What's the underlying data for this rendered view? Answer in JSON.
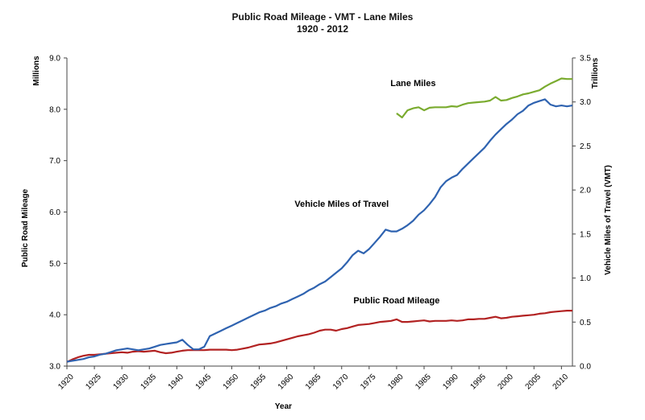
{
  "chart_data": {
    "type": "line",
    "title": "Public Road Mileage - VMT - Lane Miles",
    "subtitle": "1920 - 2012",
    "xlabel": "Year",
    "ylabel_left": "Public Road Mileage",
    "ylabel_right": "Vehicle Miles of Travel (VMT)",
    "unit_left": "Millions",
    "unit_right": "Trillions",
    "xlim": [
      1920,
      2012
    ],
    "ylim_left": [
      3.0,
      9.0
    ],
    "ylim_right": [
      0.0,
      3.5
    ],
    "x_ticks": [
      "1920",
      "1925",
      "1930",
      "1935",
      "1940",
      "1945",
      "1950",
      "1955",
      "1960",
      "1965",
      "1970",
      "1975",
      "1980",
      "1985",
      "1990",
      "1995",
      "2000",
      "2005",
      "2010"
    ],
    "y_ticks_left": [
      "3.0",
      "4.0",
      "5.0",
      "6.0",
      "7.0",
      "8.0",
      "9.0"
    ],
    "y_ticks_right": [
      "0.0",
      "0.5",
      "1.0",
      "1.5",
      "2.0",
      "2.5",
      "3.0",
      "3.5"
    ],
    "grid": false,
    "legend": "none (series labeled inline)",
    "series": [
      {
        "name": "Public Road Mileage",
        "axis": "left",
        "color": "#b22222",
        "label_at": [
          1980,
          4.22
        ],
        "points": [
          [
            1920,
            3.08
          ],
          [
            1921,
            3.13
          ],
          [
            1922,
            3.17
          ],
          [
            1923,
            3.2
          ],
          [
            1924,
            3.22
          ],
          [
            1925,
            3.22
          ],
          [
            1926,
            3.23
          ],
          [
            1927,
            3.24
          ],
          [
            1928,
            3.25
          ],
          [
            1929,
            3.26
          ],
          [
            1930,
            3.27
          ],
          [
            1931,
            3.26
          ],
          [
            1932,
            3.28
          ],
          [
            1933,
            3.29
          ],
          [
            1934,
            3.28
          ],
          [
            1935,
            3.29
          ],
          [
            1936,
            3.3
          ],
          [
            1937,
            3.27
          ],
          [
            1938,
            3.25
          ],
          [
            1939,
            3.26
          ],
          [
            1940,
            3.28
          ],
          [
            1941,
            3.3
          ],
          [
            1942,
            3.31
          ],
          [
            1943,
            3.31
          ],
          [
            1944,
            3.31
          ],
          [
            1945,
            3.31
          ],
          [
            1946,
            3.32
          ],
          [
            1947,
            3.32
          ],
          [
            1948,
            3.32
          ],
          [
            1949,
            3.32
          ],
          [
            1950,
            3.31
          ],
          [
            1951,
            3.32
          ],
          [
            1952,
            3.34
          ],
          [
            1953,
            3.36
          ],
          [
            1954,
            3.39
          ],
          [
            1955,
            3.42
          ],
          [
            1956,
            3.43
          ],
          [
            1957,
            3.44
          ],
          [
            1958,
            3.46
          ],
          [
            1959,
            3.49
          ],
          [
            1960,
            3.52
          ],
          [
            1961,
            3.55
          ],
          [
            1962,
            3.58
          ],
          [
            1963,
            3.6
          ],
          [
            1964,
            3.62
          ],
          [
            1965,
            3.65
          ],
          [
            1966,
            3.69
          ],
          [
            1967,
            3.71
          ],
          [
            1968,
            3.71
          ],
          [
            1969,
            3.69
          ],
          [
            1970,
            3.72
          ],
          [
            1971,
            3.74
          ],
          [
            1972,
            3.77
          ],
          [
            1973,
            3.8
          ],
          [
            1974,
            3.81
          ],
          [
            1975,
            3.82
          ],
          [
            1976,
            3.84
          ],
          [
            1977,
            3.86
          ],
          [
            1978,
            3.87
          ],
          [
            1979,
            3.88
          ],
          [
            1980,
            3.91
          ],
          [
            1981,
            3.86
          ],
          [
            1982,
            3.86
          ],
          [
            1983,
            3.87
          ],
          [
            1984,
            3.88
          ],
          [
            1985,
            3.89
          ],
          [
            1986,
            3.87
          ],
          [
            1987,
            3.88
          ],
          [
            1988,
            3.88
          ],
          [
            1989,
            3.88
          ],
          [
            1990,
            3.89
          ],
          [
            1991,
            3.88
          ],
          [
            1992,
            3.89
          ],
          [
            1993,
            3.91
          ],
          [
            1994,
            3.91
          ],
          [
            1995,
            3.92
          ],
          [
            1996,
            3.92
          ],
          [
            1997,
            3.94
          ],
          [
            1998,
            3.96
          ],
          [
            1999,
            3.93
          ],
          [
            2000,
            3.94
          ],
          [
            2001,
            3.96
          ],
          [
            2002,
            3.97
          ],
          [
            2003,
            3.98
          ],
          [
            2004,
            3.99
          ],
          [
            2005,
            4.0
          ],
          [
            2006,
            4.02
          ],
          [
            2007,
            4.03
          ],
          [
            2008,
            4.05
          ],
          [
            2009,
            4.06
          ],
          [
            2010,
            4.07
          ],
          [
            2011,
            4.08
          ],
          [
            2012,
            4.08
          ]
        ]
      },
      {
        "name": "Vehicle Miles of Travel",
        "axis": "right",
        "color": "#2f63b0",
        "label_at": [
          1970,
          1.81
        ],
        "points": [
          [
            1920,
            0.05
          ],
          [
            1921,
            0.06
          ],
          [
            1922,
            0.07
          ],
          [
            1923,
            0.08
          ],
          [
            1924,
            0.1
          ],
          [
            1925,
            0.11
          ],
          [
            1926,
            0.13
          ],
          [
            1927,
            0.14
          ],
          [
            1928,
            0.16
          ],
          [
            1929,
            0.18
          ],
          [
            1930,
            0.19
          ],
          [
            1931,
            0.2
          ],
          [
            1932,
            0.19
          ],
          [
            1933,
            0.18
          ],
          [
            1934,
            0.19
          ],
          [
            1935,
            0.2
          ],
          [
            1936,
            0.22
          ],
          [
            1937,
            0.24
          ],
          [
            1938,
            0.25
          ],
          [
            1939,
            0.26
          ],
          [
            1940,
            0.27
          ],
          [
            1941,
            0.3
          ],
          [
            1942,
            0.24
          ],
          [
            1943,
            0.19
          ],
          [
            1944,
            0.19
          ],
          [
            1945,
            0.22
          ],
          [
            1946,
            0.34
          ],
          [
            1947,
            0.37
          ],
          [
            1948,
            0.4
          ],
          [
            1949,
            0.43
          ],
          [
            1950,
            0.46
          ],
          [
            1951,
            0.49
          ],
          [
            1952,
            0.52
          ],
          [
            1953,
            0.55
          ],
          [
            1954,
            0.58
          ],
          [
            1955,
            0.61
          ],
          [
            1956,
            0.63
          ],
          [
            1957,
            0.66
          ],
          [
            1958,
            0.68
          ],
          [
            1959,
            0.71
          ],
          [
            1960,
            0.73
          ],
          [
            1961,
            0.76
          ],
          [
            1962,
            0.79
          ],
          [
            1963,
            0.82
          ],
          [
            1964,
            0.86
          ],
          [
            1965,
            0.89
          ],
          [
            1966,
            0.93
          ],
          [
            1967,
            0.96
          ],
          [
            1968,
            1.01
          ],
          [
            1969,
            1.06
          ],
          [
            1970,
            1.11
          ],
          [
            1971,
            1.18
          ],
          [
            1972,
            1.26
          ],
          [
            1973,
            1.31
          ],
          [
            1974,
            1.28
          ],
          [
            1975,
            1.33
          ],
          [
            1976,
            1.4
          ],
          [
            1977,
            1.47
          ],
          [
            1978,
            1.55
          ],
          [
            1979,
            1.53
          ],
          [
            1980,
            1.53
          ],
          [
            1981,
            1.56
          ],
          [
            1982,
            1.6
          ],
          [
            1983,
            1.65
          ],
          [
            1984,
            1.72
          ],
          [
            1985,
            1.77
          ],
          [
            1986,
            1.84
          ],
          [
            1987,
            1.92
          ],
          [
            1988,
            2.03
          ],
          [
            1989,
            2.1
          ],
          [
            1990,
            2.14
          ],
          [
            1991,
            2.17
          ],
          [
            1992,
            2.24
          ],
          [
            1993,
            2.3
          ],
          [
            1994,
            2.36
          ],
          [
            1995,
            2.42
          ],
          [
            1996,
            2.48
          ],
          [
            1997,
            2.56
          ],
          [
            1998,
            2.63
          ],
          [
            1999,
            2.69
          ],
          [
            2000,
            2.75
          ],
          [
            2001,
            2.8
          ],
          [
            2002,
            2.86
          ],
          [
            2003,
            2.9
          ],
          [
            2004,
            2.96
          ],
          [
            2005,
            2.99
          ],
          [
            2006,
            3.01
          ],
          [
            2007,
            3.03
          ],
          [
            2008,
            2.97
          ],
          [
            2009,
            2.95
          ],
          [
            2010,
            2.96
          ],
          [
            2011,
            2.95
          ],
          [
            2012,
            2.96
          ]
        ]
      },
      {
        "name": "Lane Miles",
        "axis": "left",
        "color": "#7aab2f",
        "label_at": [
          1983,
          8.45
        ],
        "points": [
          [
            1980,
            7.92
          ],
          [
            1981,
            7.84
          ],
          [
            1982,
            7.98
          ],
          [
            1983,
            8.02
          ],
          [
            1984,
            8.04
          ],
          [
            1985,
            7.98
          ],
          [
            1986,
            8.03
          ],
          [
            1987,
            8.04
          ],
          [
            1988,
            8.04
          ],
          [
            1989,
            8.04
          ],
          [
            1990,
            8.06
          ],
          [
            1991,
            8.05
          ],
          [
            1992,
            8.09
          ],
          [
            1993,
            8.12
          ],
          [
            1994,
            8.13
          ],
          [
            1995,
            8.14
          ],
          [
            1996,
            8.15
          ],
          [
            1997,
            8.17
          ],
          [
            1998,
            8.24
          ],
          [
            1999,
            8.17
          ],
          [
            2000,
            8.18
          ],
          [
            2001,
            8.22
          ],
          [
            2002,
            8.25
          ],
          [
            2003,
            8.29
          ],
          [
            2004,
            8.31
          ],
          [
            2005,
            8.34
          ],
          [
            2006,
            8.37
          ],
          [
            2007,
            8.44
          ],
          [
            2008,
            8.5
          ],
          [
            2009,
            8.55
          ],
          [
            2010,
            8.6
          ],
          [
            2011,
            8.59
          ],
          [
            2012,
            8.59
          ]
        ]
      }
    ]
  }
}
